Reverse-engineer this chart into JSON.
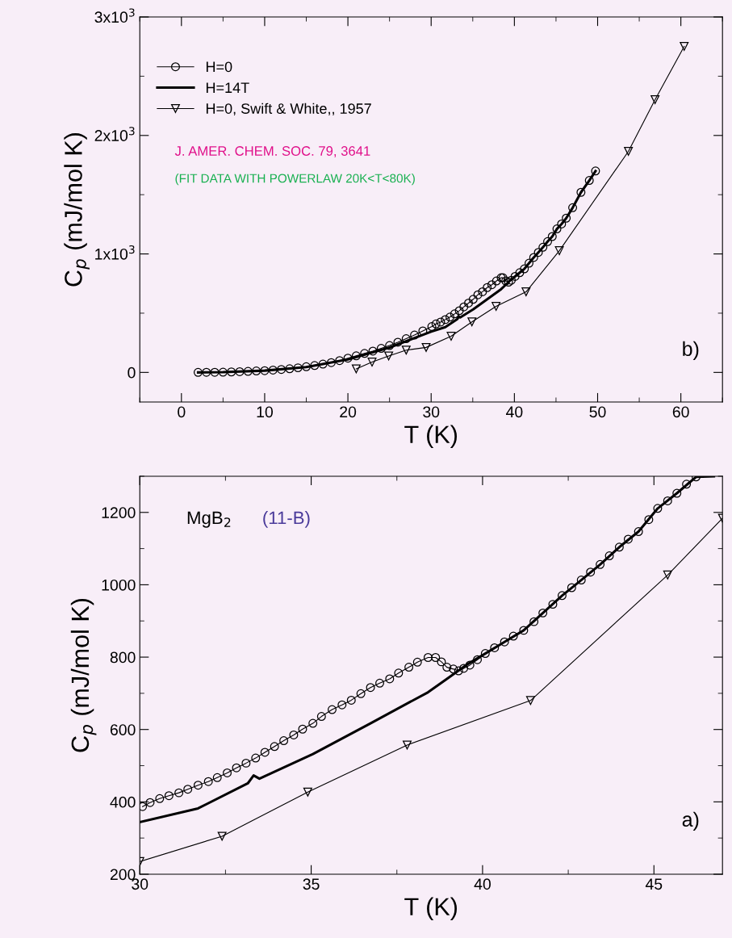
{
  "chart_data": [
    {
      "type": "line",
      "xlabel": "T (K)",
      "ylabel": "C$_{p}$ (mJ/mol K)",
      "xlim": [
        -5,
        65
      ],
      "xticks": [
        0,
        10,
        20,
        30,
        40,
        50,
        60
      ],
      "ylim": [
        -250,
        3000
      ],
      "yticks": [
        0,
        {
          "value": 1000,
          "label": "1x10$^{3}$"
        },
        {
          "value": 2000,
          "label": "2x10$^{3}$"
        },
        {
          "value": 3000,
          "label": "3x10$^{3}$"
        }
      ],
      "grid": false,
      "legend": "top left",
      "annotations": [
        "J. AMER. CHEM. SOC. 79, 3641",
        "(FIT DATA WITH POWERLAW 20K<T<80K)",
        "b)"
      ],
      "series": [
        {
          "name": "H=0",
          "color": "#000000",
          "marker": "circle",
          "line_style": "solid",
          "x": [
            2,
            3,
            4,
            5,
            6,
            7,
            8,
            9,
            10,
            11,
            12,
            13,
            14,
            15,
            16,
            17,
            18,
            19,
            20,
            21,
            22,
            23,
            24,
            25,
            26,
            27,
            28,
            29,
            30.08,
            30.58,
            31.14,
            31.7,
            32.26,
            32.82,
            33.38,
            33.93,
            34.49,
            35.05,
            35.61,
            36.17,
            36.73,
            37.29,
            37.85,
            38.41,
            38.63,
            38.96,
            39.3,
            39.63,
            40.08,
            40.64,
            41.2,
            41.76,
            42.32,
            42.88,
            43.43,
            43.99,
            44.55,
            45.11,
            45.67,
            46.23,
            47.0,
            48.0,
            49.0,
            49.75
          ],
          "values": [
            0,
            1,
            1,
            2,
            4,
            6,
            9,
            12,
            15,
            20,
            25,
            31,
            39,
            48,
            58,
            70,
            83,
            100,
            120,
            140,
            160,
            180,
            203,
            227,
            255,
            285,
            315,
            350,
            387,
            409,
            425,
            446,
            467,
            494,
            521,
            553,
            585,
            617,
            655,
            681,
            716,
            740,
            772,
            799,
            799,
            772,
            762,
            778,
            810,
            842,
            874,
            922,
            970,
            1013,
            1056,
            1104,
            1147,
            1211,
            1253,
            1302,
            1390,
            1520,
            1620,
            1700
          ]
        },
        {
          "name": "H=14T",
          "color": "#000000",
          "marker": "none",
          "line_style": "solid",
          "x": [
            2,
            5,
            10,
            15,
            20,
            25,
            30,
            31.7,
            33.15,
            33.32,
            33.49,
            35.05,
            36.73,
            38.41,
            38.96,
            39.52,
            40.08,
            40.64,
            41.2,
            41.76,
            42.32,
            42.88,
            43.43,
            43.99,
            44.55,
            45.11,
            45.67,
            46.23,
            47.0,
            48.0,
            49.0,
            49.75
          ],
          "values": [
            0,
            2,
            15,
            45,
            110,
            210,
            344,
            382,
            451,
            473,
            464,
            532,
            617,
            703,
            740,
            778,
            810,
            842,
            874,
            922,
            970,
            1013,
            1056,
            1104,
            1147,
            1211,
            1253,
            1302,
            1390,
            1520,
            1620,
            1700
          ]
        },
        {
          "name": "H=0, Swift & White,, 1957",
          "color": "#000000",
          "marker": "triangle",
          "line_style": "solid",
          "x": [
            21.0,
            22.9,
            24.9,
            27.0,
            29.4,
            32.4,
            34.9,
            37.8,
            41.4,
            45.4,
            53.7,
            56.9,
            60.4
          ],
          "values": [
            30,
            87,
            139,
            188,
            211,
            305,
            427,
            557,
            680,
            1027,
            1866,
            2302,
            2752
          ]
        }
      ]
    },
    {
      "type": "line",
      "xlabel": "T (K)",
      "ylabel": "C$_{p}$ (mJ/mol K)",
      "xlim": [
        30,
        47
      ],
      "xticks": [
        30,
        35,
        40,
        45
      ],
      "ylim": [
        200,
        1300
      ],
      "yticks": [
        200,
        400,
        600,
        800,
        1000,
        1200
      ],
      "grid": false,
      "annotations": [
        "MgB$_{2}$",
        "(11-B)",
        "a)"
      ],
      "series": [
        {
          "color": "#000000",
          "marker": "circle",
          "line_style": "solid",
          "x": [
            30.08,
            30.3,
            30.58,
            30.85,
            31.14,
            31.4,
            31.7,
            32.0,
            32.26,
            32.55,
            32.82,
            33.1,
            33.38,
            33.65,
            33.93,
            34.2,
            34.49,
            34.75,
            35.05,
            35.3,
            35.61,
            35.9,
            36.17,
            36.45,
            36.73,
            37.0,
            37.29,
            37.55,
            37.85,
            38.1,
            38.41,
            38.63,
            38.8,
            38.96,
            39.15,
            39.3,
            39.45,
            39.63,
            39.85,
            40.08,
            40.35,
            40.64,
            40.9,
            41.2,
            41.5,
            41.76,
            42.05,
            42.32,
            42.6,
            42.88,
            43.15,
            43.43,
            43.7,
            43.99,
            44.25,
            44.55,
            44.85,
            45.11,
            45.4,
            45.67,
            45.95,
            46.23
          ],
          "values": [
            387,
            398,
            409,
            417,
            425,
            435,
            446,
            456,
            467,
            480,
            494,
            507,
            521,
            537,
            553,
            569,
            585,
            601,
            617,
            636,
            655,
            668,
            681,
            699,
            716,
            728,
            740,
            756,
            772,
            786,
            799,
            799,
            787,
            772,
            767,
            762,
            769,
            778,
            793,
            810,
            826,
            842,
            858,
            874,
            898,
            922,
            946,
            970,
            992,
            1013,
            1035,
            1056,
            1080,
            1104,
            1126,
            1147,
            1180,
            1211,
            1232,
            1253,
            1278,
            1298
          ]
        },
        {
          "color": "#000000",
          "marker": "none",
          "line_style": "solid",
          "x": [
            30,
            31.7,
            33.15,
            33.32,
            33.49,
            35.05,
            36.73,
            38.41,
            38.96,
            39.52,
            40.08,
            40.64,
            41.2,
            41.76,
            42.32,
            42.88,
            43.43,
            43.99,
            44.55,
            45.11,
            45.67,
            46.23,
            46.75
          ],
          "values": [
            344,
            382,
            451,
            473,
            464,
            532,
            617,
            703,
            740,
            778,
            810,
            842,
            874,
            922,
            970,
            1013,
            1056,
            1104,
            1147,
            1211,
            1253,
            1298,
            1300
          ]
        },
        {
          "color": "#000000",
          "marker": "triangle",
          "line_style": "solid",
          "x": [
            30,
            32.4,
            34.9,
            37.8,
            41.4,
            45.4,
            47
          ],
          "values": [
            235,
            305,
            427,
            557,
            680,
            1027,
            1184
          ]
        }
      ]
    }
  ]
}
